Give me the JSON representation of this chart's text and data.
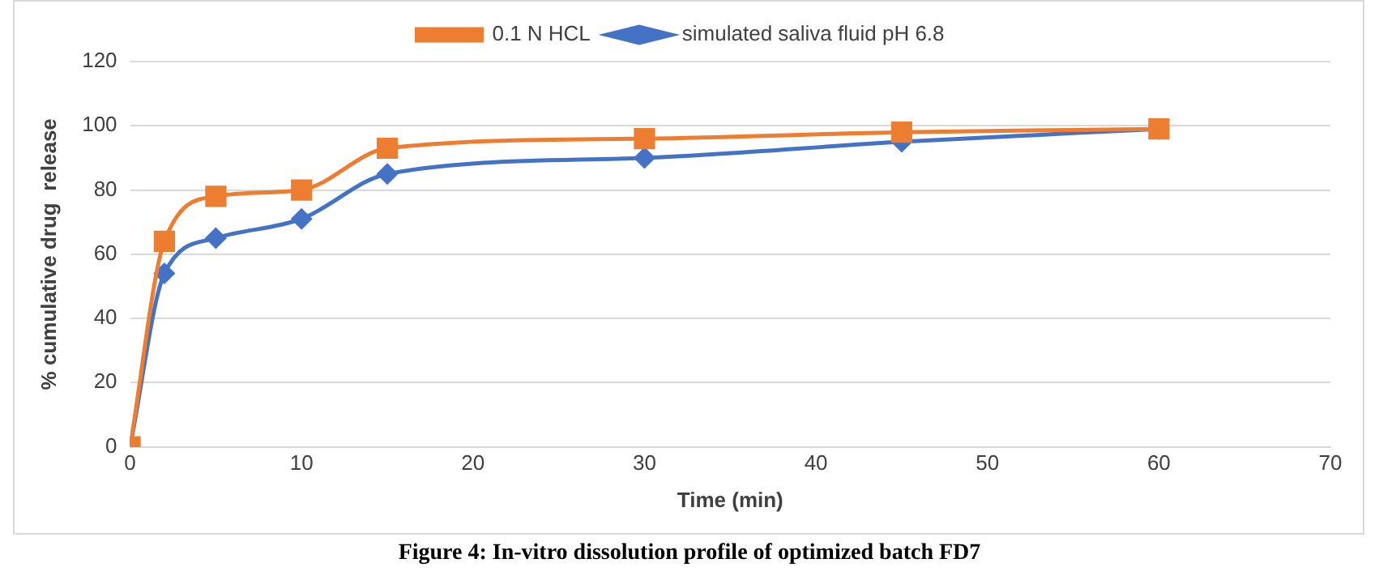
{
  "chart_data": {
    "type": "line",
    "xlabel": "Time (min)",
    "ylabel": "% cumulative drug  release",
    "xlim": [
      0,
      70
    ],
    "xticks": [
      0,
      10,
      20,
      30,
      40,
      50,
      60,
      70
    ],
    "ylim": [
      0,
      120
    ],
    "yticks": [
      0,
      20,
      40,
      60,
      80,
      100,
      120
    ],
    "grid": "y",
    "legend": "top",
    "x": [
      0,
      2,
      5,
      10,
      15,
      30,
      45,
      60
    ],
    "series": [
      {
        "name": "simulated saliva fluid pH 6.8",
        "color": "#4472c4",
        "marker": "diamond",
        "values": [
          0,
          54,
          65,
          71,
          85,
          90,
          95,
          99
        ]
      },
      {
        "name": "0.1 N HCL",
        "color": "#ed7d31",
        "marker": "square",
        "values": [
          0,
          64,
          78,
          80,
          93,
          96,
          98,
          99
        ]
      }
    ],
    "annotations": [
      "Figure 4: In-vitro dissolution profile of optimized batch FD7"
    ]
  }
}
